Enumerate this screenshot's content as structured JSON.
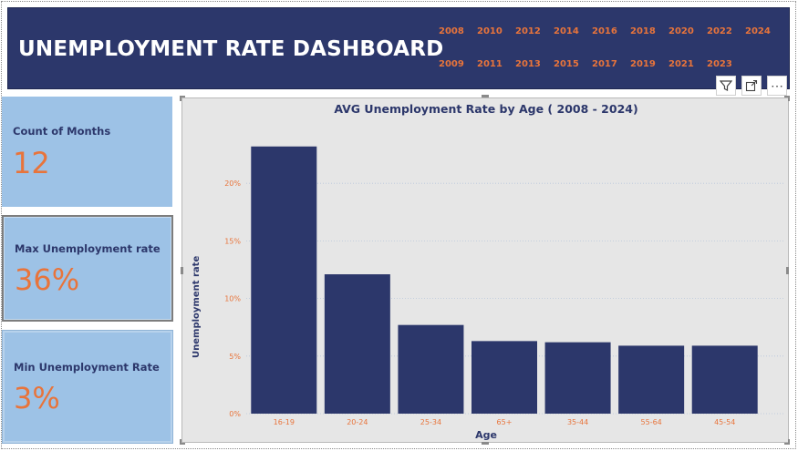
{
  "header": {
    "title": "UNEMPLOYMENT RATE DASHBOARD",
    "years_row1": [
      "2008",
      "2010",
      "2012",
      "2014",
      "2016",
      "2018",
      "2020",
      "2022",
      "2024"
    ],
    "years_row2": [
      "2009",
      "2011",
      "2013",
      "2015",
      "2017",
      "2019",
      "2021",
      "2023"
    ]
  },
  "toolbar": {
    "filter_icon": "filter-icon",
    "focus_icon": "focus-mode-icon",
    "more_icon": "more-options-icon",
    "more_glyph": "⋯"
  },
  "cards": [
    {
      "label": "Count of Months",
      "value": "12"
    },
    {
      "label": "Max Unemployment rate",
      "value": "36%"
    },
    {
      "label": "Min Unemployment Rate",
      "value": "3%"
    }
  ],
  "colors": {
    "header_bg": "#2c376b",
    "accent": "#e8743b",
    "card_bg": "#9dc2e6",
    "bar": "#2c376b",
    "chart_bg": "#e6e6e6"
  },
  "chart_data": {
    "type": "bar",
    "title": "AVG Unemployment Rate by Age ( 2008 - 2024)",
    "xlabel": "Age",
    "ylabel": "Unemployment rate",
    "categories": [
      "16-19",
      "20-24",
      "25-34",
      "65+",
      "35-44",
      "55-64",
      "45-54"
    ],
    "values": [
      23.2,
      12.1,
      7.7,
      6.3,
      6.2,
      5.9,
      5.9
    ],
    "yticks": [
      "0%",
      "5%",
      "10%",
      "15%",
      "20%"
    ],
    "ylim": [
      0,
      25
    ],
    "grid": true,
    "grid_style": "dotted horizontal"
  }
}
